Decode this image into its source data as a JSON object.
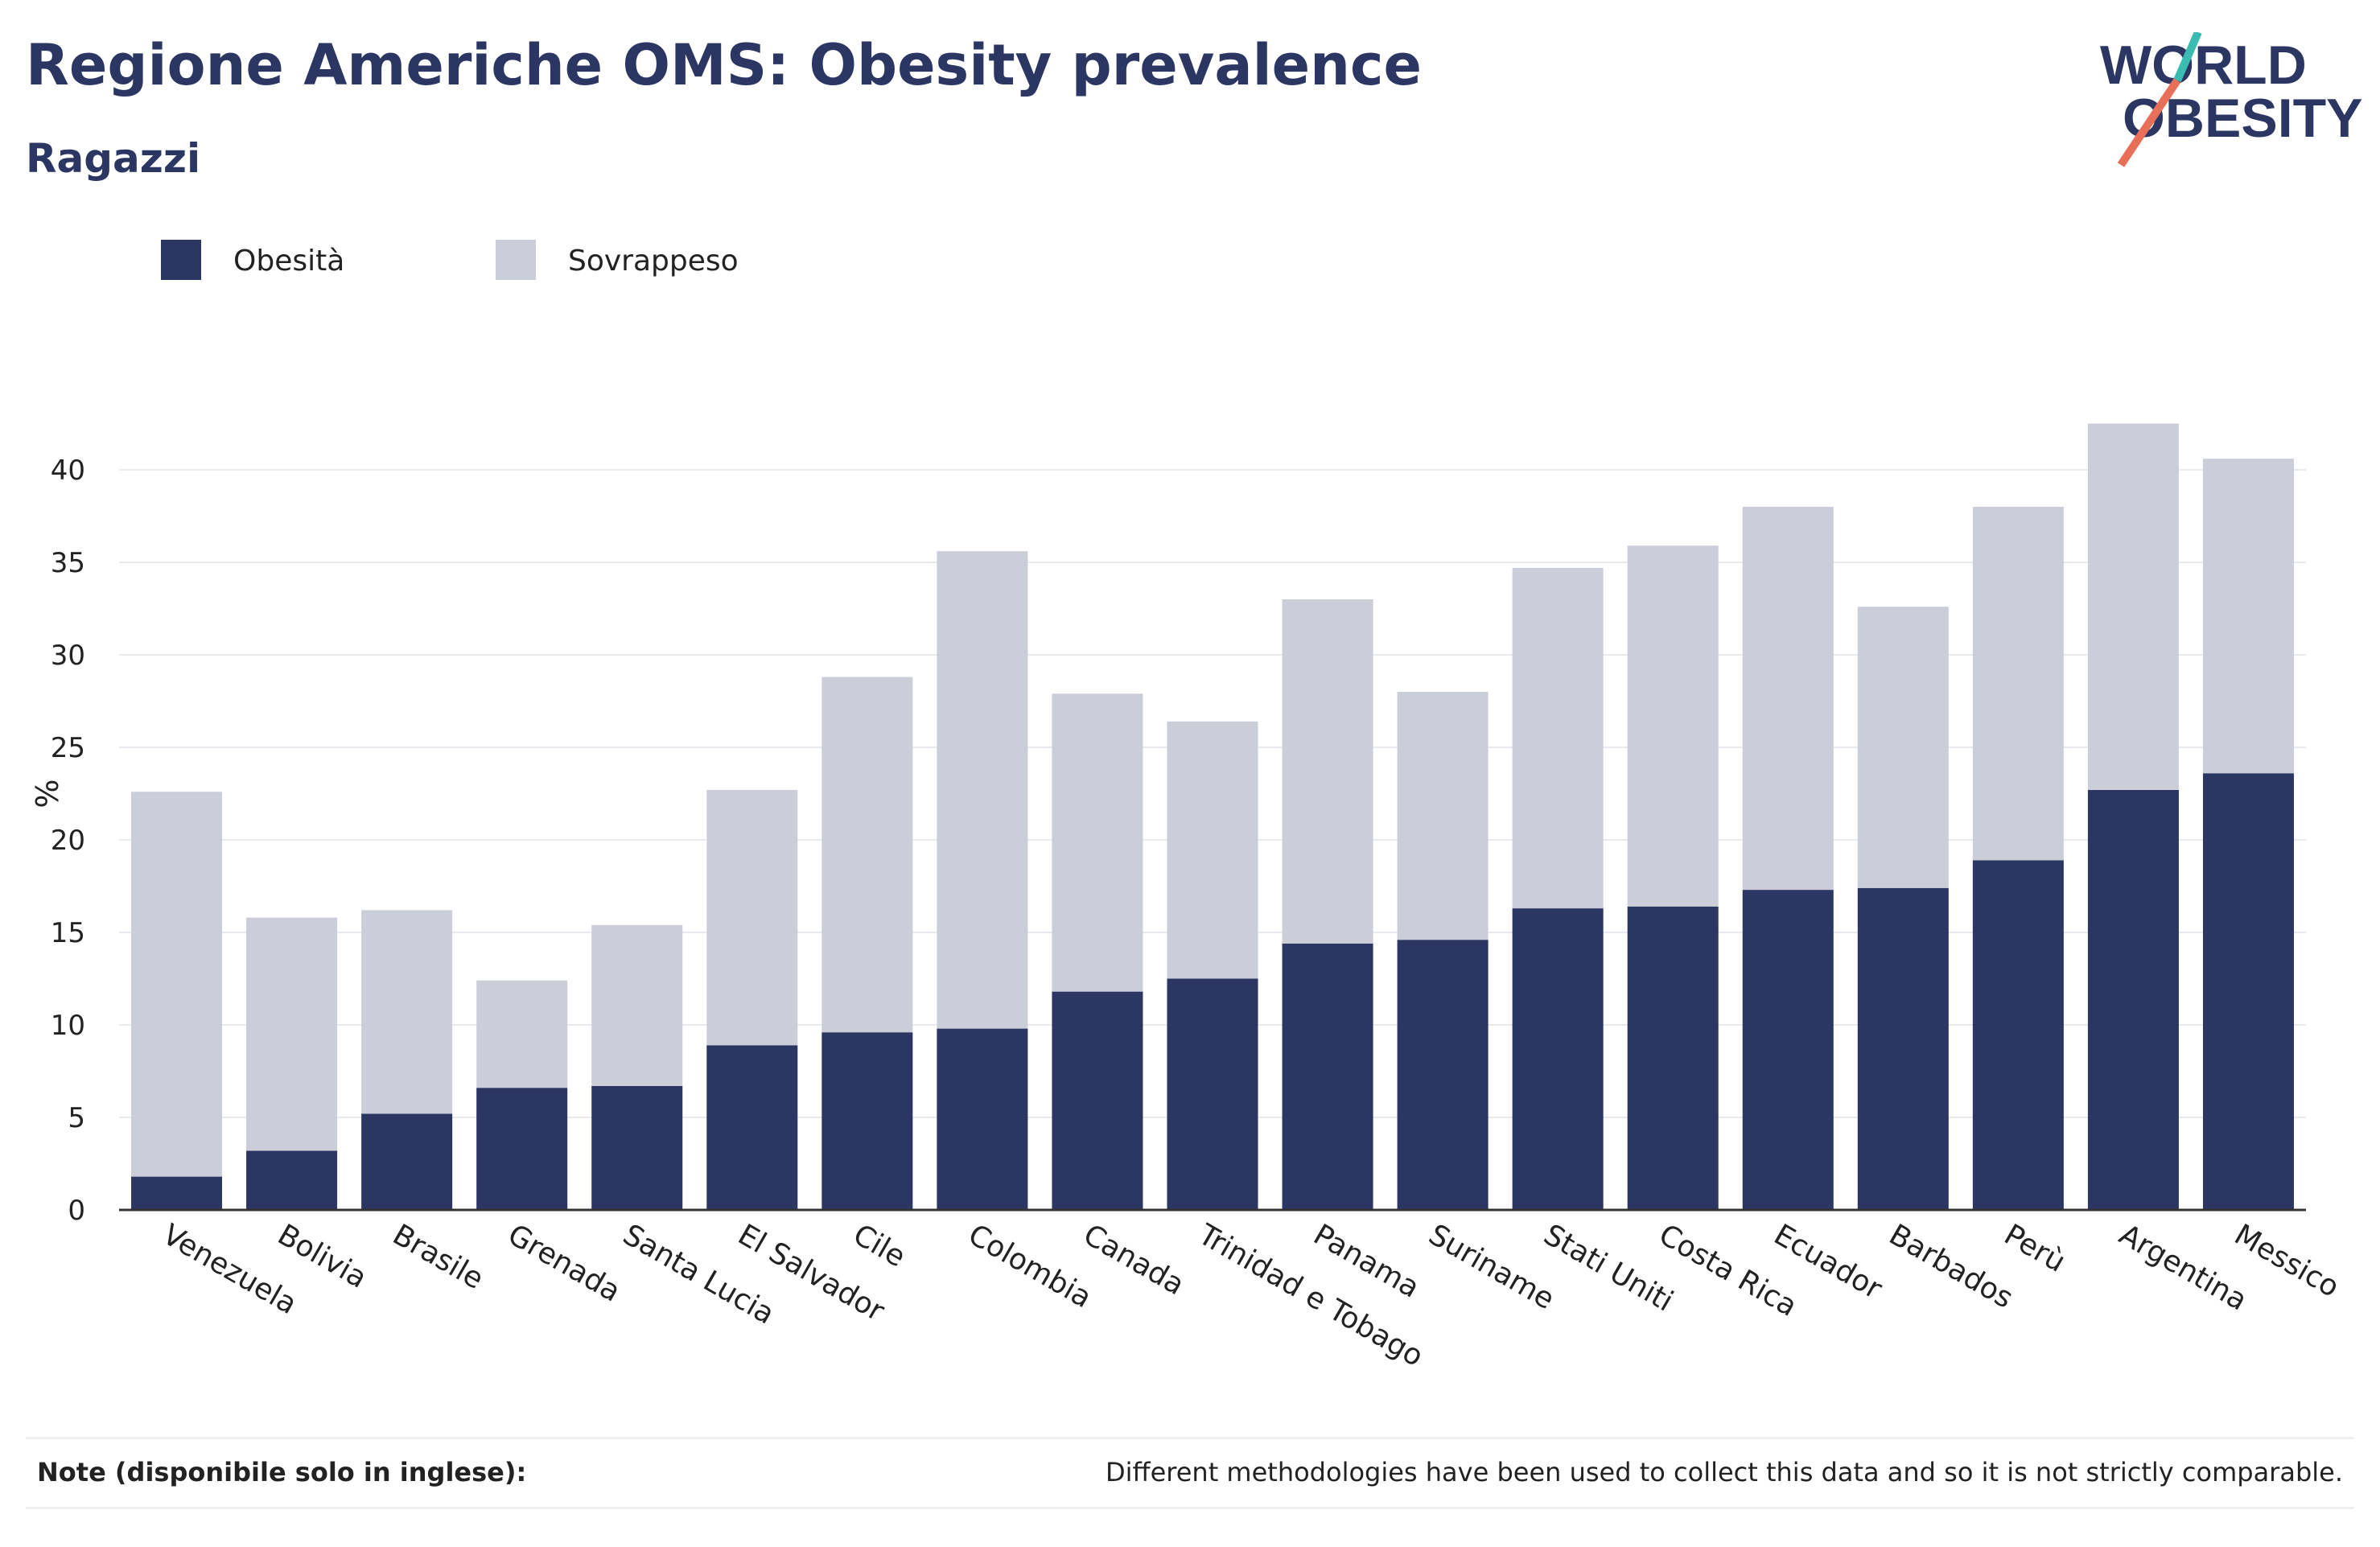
{
  "header": {
    "title": "Regione Americhe OMS: Obesity prevalence",
    "subtitle": "Ragazzi"
  },
  "logo": {
    "line1": "WORLD",
    "line2": "OBESITY",
    "color": "#2b3663",
    "accent_teal": "#3bbcb3",
    "accent_red": "#e8705a"
  },
  "legend": {
    "items": [
      {
        "label": "Obesità",
        "color": "#2b3663"
      },
      {
        "label": "Sovrappeso",
        "color": "#cbcdd9"
      }
    ]
  },
  "chart_data": {
    "type": "bar",
    "stacked": true,
    "title": "",
    "xlabel": "",
    "ylabel": "%",
    "ylim": [
      0,
      45
    ],
    "yticks": [
      0,
      5,
      10,
      15,
      20,
      25,
      30,
      35,
      40
    ],
    "grid": true,
    "legend_position": "top-left",
    "categories": [
      "Venezuela",
      "Bolivia",
      "Brasile",
      "Grenada",
      "Santa Lucia",
      "El Salvador",
      "Cile",
      "Colombia",
      "Canada",
      "Trinidad e Tobago",
      "Panama",
      "Suriname",
      "Stati Uniti",
      "Costa Rica",
      "Ecuador",
      "Barbados",
      "Perù",
      "Argentina",
      "Messico"
    ],
    "series": [
      {
        "name": "Obesità",
        "color": "#2b3663",
        "values": [
          1.8,
          3.2,
          5.2,
          6.6,
          6.7,
          8.9,
          9.6,
          9.8,
          11.8,
          12.5,
          14.4,
          14.6,
          16.3,
          16.4,
          17.3,
          17.4,
          18.9,
          22.7,
          23.6
        ]
      },
      {
        "name": "Sovrappeso",
        "color": "#cbcdd9",
        "values": [
          20.8,
          12.6,
          11.0,
          5.8,
          8.7,
          13.8,
          19.2,
          25.8,
          16.1,
          13.9,
          18.6,
          13.4,
          18.4,
          19.5,
          20.7,
          15.2,
          19.1,
          19.8,
          17.0
        ]
      }
    ]
  },
  "note": {
    "label": "Note (disponibile solo in inglese):",
    "text": "Different methodologies have been used to collect this data and so it is not strictly comparable."
  }
}
